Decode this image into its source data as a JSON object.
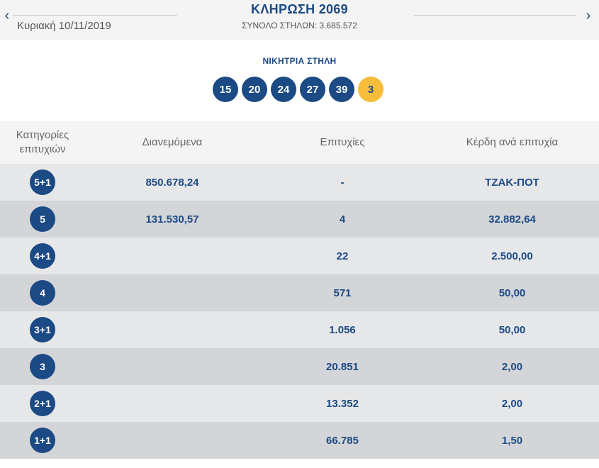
{
  "header": {
    "prev_arrow": "‹",
    "next_arrow": "›",
    "date": "Κυριακή 10/11/2019",
    "title": "ΚΛΗΡΩΣΗ 2069",
    "total_columns": "ΣΥΝΟΛΟ ΣΤΗΛΩΝ: 3.685.572"
  },
  "winning": {
    "label": "ΝΙΚΗΤΡΙΑ ΣΤΗΛΗ",
    "numbers": [
      "15",
      "20",
      "24",
      "27",
      "39"
    ],
    "bonus": "3"
  },
  "table": {
    "headers": {
      "category": "Κατηγορίες επιτυχιών",
      "distributed": "Διανεμόμενα",
      "winners": "Επιτυχίες",
      "prize": "Κέρδη ανά επιτυχία"
    },
    "rows": [
      {
        "category": "5+1",
        "distributed": "850.678,24",
        "winners": "-",
        "prize": "ΤΖΑΚ-ΠΟΤ"
      },
      {
        "category": "5",
        "distributed": "131.530,57",
        "winners": "4",
        "prize": "32.882,64"
      },
      {
        "category": "4+1",
        "distributed": "",
        "winners": "22",
        "prize": "2.500,00"
      },
      {
        "category": "4",
        "distributed": "",
        "winners": "571",
        "prize": "50,00"
      },
      {
        "category": "3+1",
        "distributed": "",
        "winners": "1.056",
        "prize": "50,00"
      },
      {
        "category": "3",
        "distributed": "",
        "winners": "20.851",
        "prize": "2,00"
      },
      {
        "category": "2+1",
        "distributed": "",
        "winners": "13.352",
        "prize": "2,00"
      },
      {
        "category": "1+1",
        "distributed": "",
        "winners": "66.785",
        "prize": "1,50"
      }
    ]
  },
  "colors": {
    "primary_blue": "#1b4a84",
    "bonus_yellow": "#f5bd3b",
    "row_light": "#e6e7e9",
    "row_dark": "#d3d5d8"
  }
}
